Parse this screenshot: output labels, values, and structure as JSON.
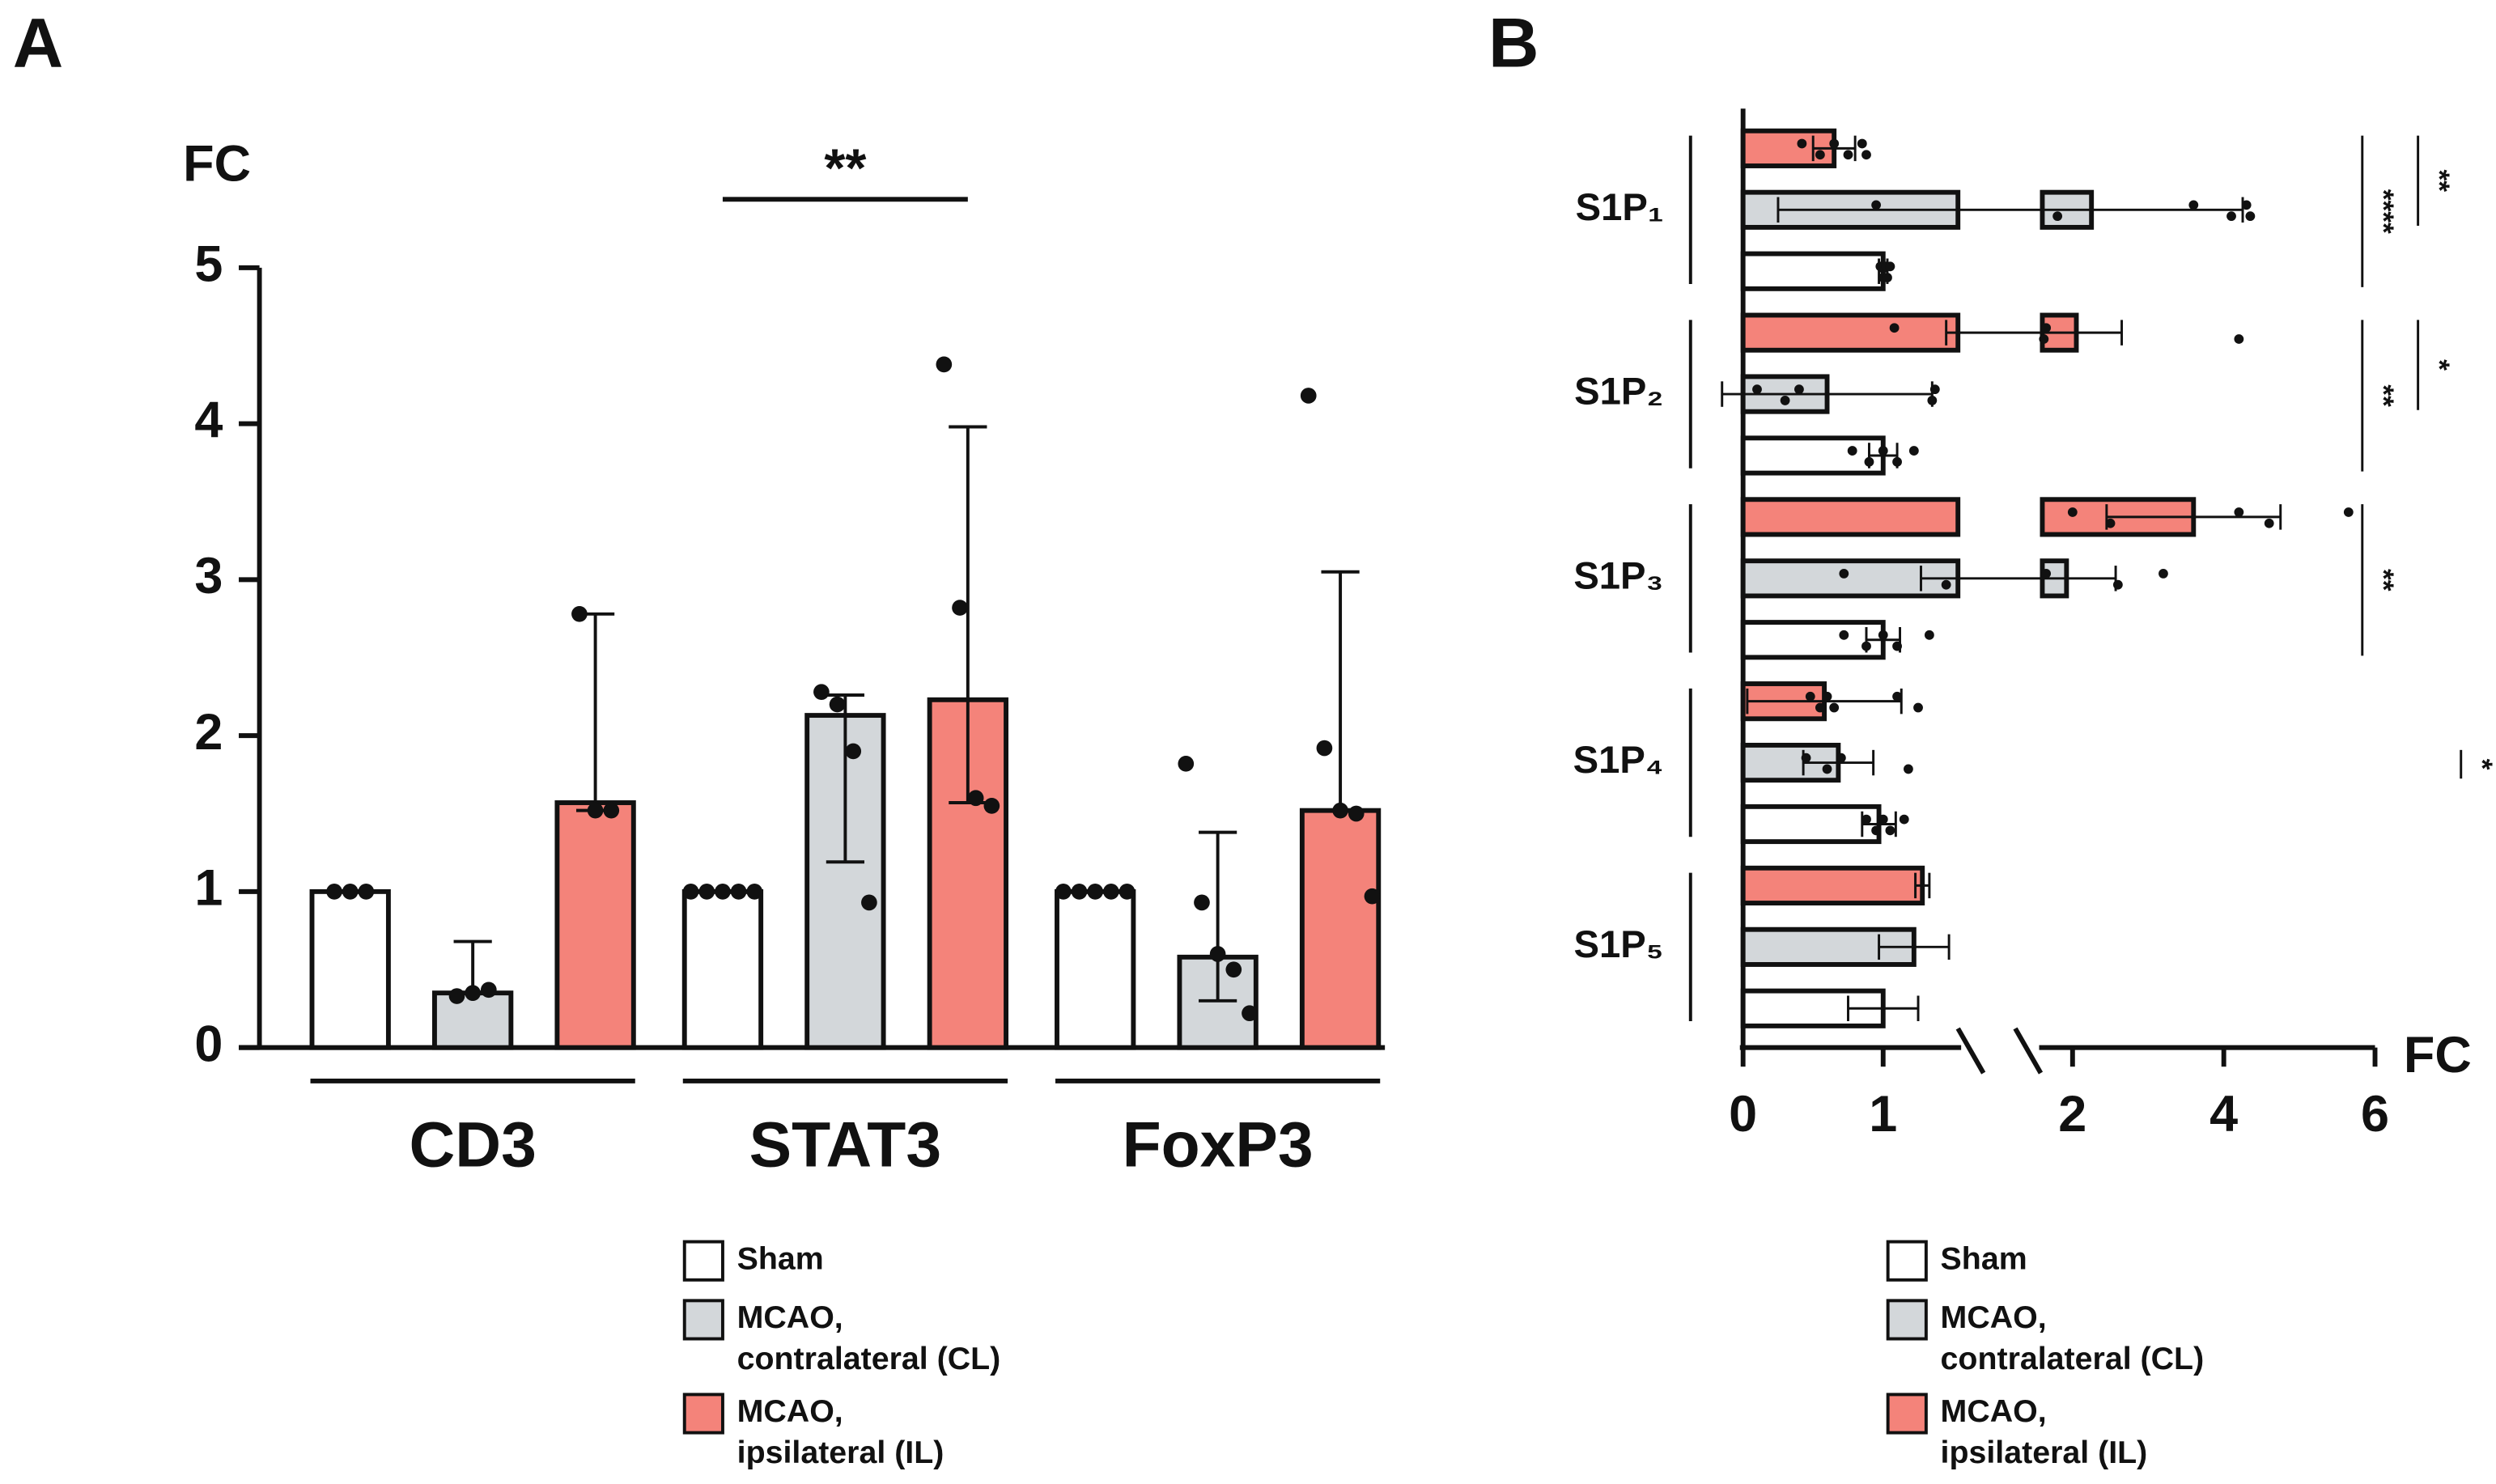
{
  "chart_data": [
    {
      "type": "bar",
      "panel": "A",
      "ylabel": "FC",
      "ylim": [
        0,
        5
      ],
      "yticks": [
        0,
        1,
        2,
        3,
        4,
        5
      ],
      "categories": [
        "CD3",
        "STAT3",
        "FoxP3"
      ],
      "annotations": [
        {
          "text": "**",
          "from": 1,
          "to": 1
        }
      ],
      "series": [
        {
          "name": "Sham",
          "color": "#ffffff",
          "values": [
            1.0,
            1.0,
            1.0
          ],
          "err_low": [
            null,
            null,
            null
          ],
          "err_high": [
            null,
            null,
            null
          ],
          "dots": [
            [
              1,
              1,
              1
            ],
            [
              1,
              1,
              1,
              1,
              1
            ],
            [
              1,
              1,
              1,
              1,
              1
            ]
          ]
        },
        {
          "name": "MCAO, contralateral (CL)",
          "color": "#d3d7da",
          "values": [
            0.35,
            2.13,
            0.58
          ],
          "err_low": [
            null,
            1.19,
            0.3
          ],
          "err_high": [
            0.68,
            2.26,
            1.38
          ],
          "dots": [
            [
              0.33,
              0.35,
              0.37
            ],
            [
              2.28,
              2.2,
              1.9,
              0.93
            ],
            [
              1.82,
              0.93,
              0.6,
              0.5,
              0.22
            ]
          ]
        },
        {
          "name": "MCAO, ipsilateral (IL)",
          "color": "#f4837a",
          "values": [
            1.57,
            2.23,
            1.52
          ],
          "err_low": [
            1.52,
            1.57,
            null
          ],
          "err_high": [
            2.78,
            3.98,
            3.05
          ],
          "dots": [
            [
              2.78,
              1.52,
              1.52
            ],
            [
              4.38,
              2.82,
              1.6,
              1.55
            ],
            [
              4.18,
              1.92,
              1.52,
              1.5,
              0.97
            ]
          ]
        }
      ],
      "legend": "bottom"
    },
    {
      "type": "barh",
      "panel": "B",
      "xlabel": "FC",
      "xlim": [
        0,
        6
      ],
      "xbreak": [
        1.5,
        1.6
      ],
      "xticks": [
        0,
        1,
        2,
        4,
        6
      ],
      "categories": [
        "S1P₁",
        "S1P₂",
        "S1P₃",
        "S1P₄",
        "S1P₅"
      ],
      "annotations": [
        {
          "text": "****",
          "category": 0
        },
        {
          "text": "**",
          "category": 0
        },
        {
          "text": "**",
          "category": 1
        },
        {
          "text": "*",
          "category": 1
        },
        {
          "text": "**",
          "category": 2
        },
        {
          "text": "*",
          "category": 3
        }
      ],
      "series": [
        {
          "name": "MCAO, ipsilateral (IL)",
          "color": "#f4837a",
          "values": [
            0.65,
            2.05,
            3.6,
            0.58,
            1.28
          ],
          "err": [
            0.15,
            0.6,
            1.15,
            0.55,
            0.05
          ],
          "dots": [
            [
              0.42,
              0.55,
              0.65,
              0.75,
              0.85,
              0.88
            ],
            [
              1.08,
              1.62,
              1.65,
              4.2
            ],
            [
              2.0,
              2.5,
              4.2,
              4.6,
              5.65
            ],
            [
              0.48,
              0.55,
              0.6,
              0.65,
              1.1,
              1.25
            ],
            []
          ]
        },
        {
          "name": "MCAO, contralateral (CL)",
          "color": "#d3d7da",
          "values": [
            2.25,
            0.6,
            1.92,
            0.68,
            1.22
          ],
          "err": [
            2.0,
            0.75,
            0.65,
            0.25,
            0.25
          ],
          "dots": [
            [
              0.95,
              1.8,
              3.6,
              4.1,
              4.3,
              4.35
            ],
            [
              0.1,
              0.3,
              0.4,
              1.35,
              1.37
            ],
            [
              0.72,
              1.45,
              1.65,
              2.6,
              3.2
            ],
            [
              0.45,
              0.6,
              0.7,
              1.18
            ],
            []
          ]
        },
        {
          "name": "Sham",
          "color": "#ffffff",
          "values": [
            1.0,
            1.0,
            1.0,
            0.97,
            1.0
          ],
          "err": [
            0.03,
            0.1,
            0.12,
            0.12,
            0.25
          ],
          "dots": [
            [
              0.98,
              1.0,
              1.02,
              1.03,
              1.05
            ],
            [
              0.78,
              0.9,
              1.0,
              1.1,
              1.22
            ],
            [
              0.72,
              0.88,
              1.0,
              1.1,
              1.33
            ],
            [
              0.88,
              0.95,
              1.0,
              1.05,
              1.15
            ],
            []
          ]
        }
      ],
      "legend": "bottom"
    }
  ]
}
